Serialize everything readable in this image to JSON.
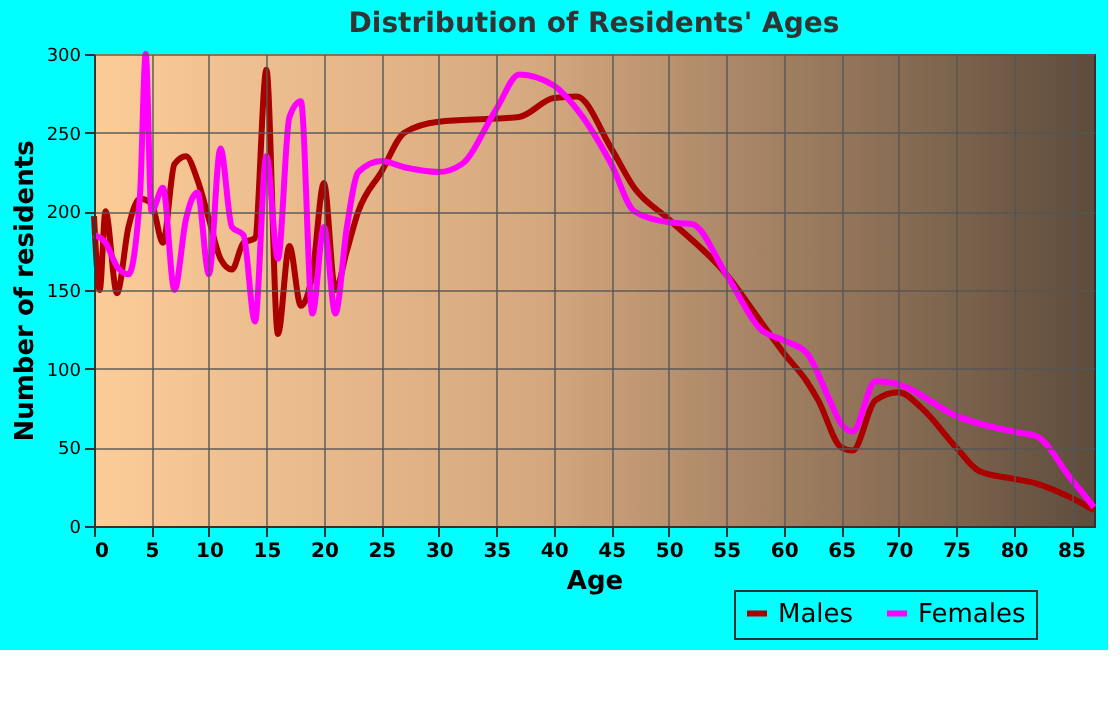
{
  "chart_data": {
    "type": "line",
    "title": "Distribution of Residents' Ages",
    "xlabel": "Age",
    "ylabel": "Number of residents",
    "xlim": [
      0,
      87
    ],
    "xticks": [
      0,
      5,
      10,
      15,
      20,
      25,
      30,
      35,
      40,
      45,
      50,
      55,
      60,
      65,
      70,
      75,
      80,
      85
    ],
    "ylim": [
      0,
      300
    ],
    "yticks": [
      0,
      50,
      100,
      150,
      200,
      250,
      300
    ],
    "grid": true,
    "legend": "bottom right",
    "series": [
      {
        "name": "Males",
        "color": "#aa0000",
        "x": [
          0,
          0.5,
          1,
          2,
          3,
          4,
          5,
          6,
          7,
          8,
          9,
          10,
          11,
          12,
          13,
          14,
          15,
          16,
          17,
          18,
          19,
          20,
          21,
          22,
          23,
          25,
          27,
          30,
          35,
          37,
          40,
          42,
          45,
          47,
          50,
          55,
          58,
          60,
          62,
          63,
          65,
          66,
          68,
          70,
          72,
          75,
          77,
          80,
          82,
          85,
          87
        ],
        "values": [
          197,
          150,
          200,
          148,
          190,
          208,
          205,
          180,
          230,
          235,
          220,
          195,
          170,
          163,
          180,
          183,
          290,
          122,
          178,
          140,
          160,
          218,
          150,
          175,
          200,
          225,
          250,
          257,
          259,
          260,
          272,
          273,
          240,
          215,
          195,
          160,
          130,
          110,
          92,
          80,
          50,
          48,
          80,
          85,
          75,
          50,
          35,
          30,
          27,
          18,
          10
        ]
      },
      {
        "name": "Females",
        "color": "#ff00ff",
        "x": [
          0,
          1,
          2,
          3,
          4,
          4.5,
          5,
          6,
          7,
          8,
          9,
          10,
          11,
          12,
          13,
          14,
          15,
          16,
          17,
          18,
          19,
          20,
          21,
          22,
          23,
          25,
          27,
          30,
          32,
          35,
          37,
          40,
          42,
          45,
          47,
          50,
          52,
          55,
          58,
          60,
          62,
          64,
          65,
          66,
          68,
          70,
          75,
          80,
          82,
          85,
          87
        ],
        "values": [
          185,
          180,
          165,
          160,
          210,
          300,
          200,
          215,
          150,
          195,
          212,
          160,
          240,
          190,
          185,
          130,
          235,
          170,
          260,
          270,
          135,
          190,
          135,
          190,
          225,
          232,
          228,
          225,
          230,
          265,
          287,
          280,
          265,
          230,
          200,
          193,
          192,
          160,
          125,
          118,
          110,
          80,
          65,
          60,
          92,
          90,
          70,
          60,
          57,
          30,
          12
        ]
      }
    ]
  }
}
